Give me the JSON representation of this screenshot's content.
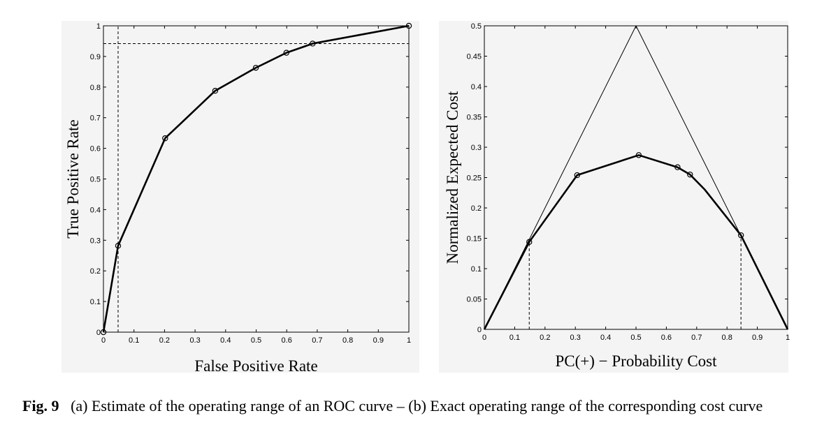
{
  "caption": {
    "label": "Fig. 9",
    "text": "(a) Estimate of the operating range of an ROC curve – (b) Exact operating range of the corresponding cost curve"
  },
  "chart_data": [
    {
      "type": "line",
      "xlabel": "False Positive Rate",
      "ylabel": "True Positive Rate",
      "xlim": [
        0,
        1
      ],
      "ylim": [
        0,
        1
      ],
      "xticks": [
        "0",
        "0.1",
        "0.2",
        "0.3",
        "0.4",
        "0.5",
        "0.6",
        "0.7",
        "0.8",
        "0.9",
        "1"
      ],
      "yticks": [
        "0",
        "0.1",
        "0.2",
        "0.3",
        "0.4",
        "0.5",
        "0.6",
        "0.7",
        "0.8",
        "0.9",
        "1"
      ],
      "grid": false,
      "series": [
        {
          "x": [
            0,
            0.048,
            0.202,
            0.366,
            0.499,
            0.599,
            0.685,
            1.0
          ],
          "y": [
            0,
            0.282,
            0.633,
            0.788,
            0.863,
            0.912,
            0.942,
            1.0
          ],
          "marker": "circle"
        }
      ],
      "reference_lines": [
        {
          "orientation": "vertical",
          "x": 0.048,
          "style": "dashed"
        },
        {
          "orientation": "horizontal",
          "y": 0.942,
          "style": "dashed"
        }
      ]
    },
    {
      "type": "line",
      "xlabel": "PC(+) − Probability Cost",
      "ylabel": "Normalized Expected Cost",
      "xlim": [
        0,
        1
      ],
      "ylim": [
        0,
        0.5
      ],
      "xticks": [
        "0",
        "0.1",
        "0.2",
        "0.3",
        "0.4",
        "0.5",
        "0.6",
        "0.7",
        "0.8",
        "0.9",
        "1"
      ],
      "yticks": [
        "0",
        "0.05",
        "0.1",
        "0.15",
        "0.2",
        "0.25",
        "0.3",
        "0.35",
        "0.4",
        "0.45",
        "0.5"
      ],
      "grid": false,
      "series": [
        {
          "x": [
            0,
            0.5,
            1
          ],
          "y": [
            0,
            0.5,
            0
          ],
          "style": "thin"
        },
        {
          "x": [
            0,
            0.148,
            0.306,
            0.509,
            0.637,
            0.678,
            0.727,
            0.846,
            1.0
          ],
          "y": [
            0,
            0.144,
            0.254,
            0.287,
            0.267,
            0.255,
            0.23,
            0.155,
            0
          ],
          "style": "thick"
        }
      ],
      "markers": {
        "x": [
          0.148,
          0.306,
          0.509,
          0.637,
          0.678,
          0.846
        ],
        "y": [
          0.144,
          0.254,
          0.287,
          0.267,
          0.255,
          0.155
        ]
      },
      "reference_lines": [
        {
          "orientation": "vertical",
          "x": 0.148,
          "y_top": 0.144,
          "style": "dashed"
        },
        {
          "orientation": "vertical",
          "x": 0.846,
          "y_top": 0.155,
          "style": "dashed"
        }
      ]
    }
  ]
}
